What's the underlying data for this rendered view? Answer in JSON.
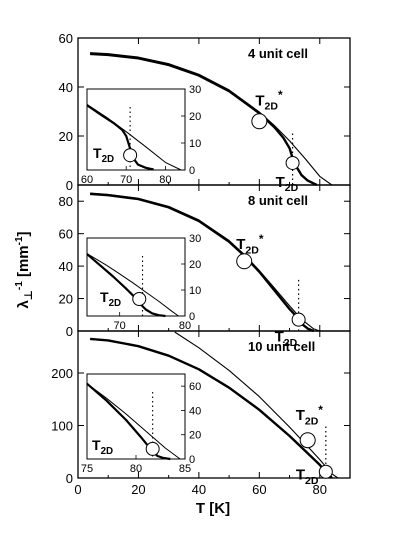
{
  "chart_data": {
    "type": "line",
    "xlabel": "T [K]",
    "ylabel": "λ⊥-1 [mm-1]",
    "panels": [
      {
        "id": "p1",
        "label": "4 unit cell",
        "xlim": [
          0,
          90
        ],
        "ylim": [
          0,
          60
        ],
        "xticks": [],
        "yticks": [
          0,
          20,
          40,
          60
        ],
        "marker_labels": [
          {
            "text": "T2D*",
            "base": "T",
            "sub": "2D",
            "sup": "*",
            "marker": {
              "x": 60,
              "y": 26
            }
          },
          {
            "text": "T2D",
            "base": "T",
            "sub": "2D",
            "sup": "",
            "marker": {
              "x": 71,
              "y": 9
            }
          }
        ],
        "dashed_x": 71,
        "series": [
          {
            "name": "",
            "style": "thin",
            "x": [
              4,
              10,
              20,
              30,
              40,
              50,
              60,
              65,
              70,
              75,
              80,
              84
            ],
            "y": [
              54,
              53.6,
              52.2,
              49.5,
              45.2,
              38.8,
              29.8,
              24.3,
              18.0,
              11.0,
              3.5,
              0
            ]
          },
          {
            "name": "",
            "style": "thick",
            "x": [
              4,
              10,
              20,
              30,
              40,
              50,
              60,
              65,
              68,
              70,
              71,
              72,
              74,
              76,
              79
            ],
            "y": [
              53.5,
              53.1,
              51.7,
              49.0,
              44.7,
              38.3,
              29.3,
              23.6,
              19.2,
              15.0,
              11.0,
              8.0,
              4.0,
              1.8,
              0
            ]
          }
        ],
        "inset": {
          "xlim": [
            60,
            85
          ],
          "ylim": [
            0,
            30
          ],
          "xticks": [
            60,
            70,
            80
          ],
          "yticks": [
            0,
            10,
            20,
            30
          ],
          "marker_label": {
            "text": "T2D",
            "base": "T",
            "sub": "2D",
            "sup": "",
            "marker": {
              "x": 71,
              "y": 4
            }
          },
          "dashed_x": 71,
          "series": [
            {
              "name": "",
              "style": "thin",
              "x": [
                60,
                65,
                70,
                75,
                80,
                84
              ],
              "y": [
                24.3,
                19.5,
                14.2,
                8.6,
                2.8,
                0
              ]
            },
            {
              "name": "",
              "style": "thick",
              "x": [
                60,
                64,
                67,
                69,
                70,
                71,
                72,
                73,
                75,
                77
              ],
              "y": [
                24,
                20,
                17.2,
                14.8,
                12.6,
                8,
                4,
                2,
                0.8,
                0.2
              ]
            }
          ]
        }
      },
      {
        "id": "p2",
        "label": "8 unit cell",
        "xlim": [
          0,
          90
        ],
        "ylim": [
          0,
          90
        ],
        "xticks": [],
        "yticks": [
          0,
          20,
          40,
          60,
          80
        ],
        "marker_labels": [
          {
            "text": "T2D*",
            "base": "T",
            "sub": "2D",
            "sup": "*",
            "marker": {
              "x": 55,
              "y": 43
            }
          },
          {
            "text": "T2D",
            "base": "T",
            "sub": "2D",
            "sup": "",
            "marker": {
              "x": 73,
              "y": 7
            }
          }
        ],
        "dashed_x": 73,
        "series": [
          {
            "name": "",
            "style": "thin",
            "x": [
              4,
              10,
              20,
              30,
              40,
              50,
              55,
              60,
              65,
              70,
              74,
              78,
              80
            ],
            "y": [
              85,
              84.2,
              81.8,
              76.8,
              68.5,
              55.8,
              47.2,
              37.3,
              26.5,
              15.5,
              7.2,
              1.3,
              0
            ]
          },
          {
            "name": "",
            "style": "thick",
            "x": [
              4,
              10,
              20,
              30,
              40,
              50,
              55,
              60,
              65,
              70,
              72,
              73,
              74,
              76,
              78
            ],
            "y": [
              84.5,
              83.7,
              81.3,
              76.2,
              67.8,
              55.0,
              46.5,
              36.5,
              25.0,
              13.5,
              9.5,
              7,
              4.5,
              1.5,
              0
            ]
          }
        ],
        "inset": {
          "xlim": [
            65,
            80
          ],
          "ylim": [
            0,
            30
          ],
          "xticks": [
            70,
            80
          ],
          "yticks": [
            0,
            10,
            20,
            30
          ],
          "marker_label": {
            "text": "T2D",
            "base": "T",
            "sub": "2D",
            "sup": "",
            "marker": {
              "x": 73,
              "y": 5
            }
          },
          "dashed_x": 73.5,
          "series": [
            {
              "name": "",
              "style": "thin",
              "x": [
                65,
                68,
                70,
                72,
                74,
                76,
                78,
                79
              ],
              "y": [
                24,
                19.5,
                16.2,
                12.8,
                9.2,
                5.6,
                1.8,
                0
              ]
            },
            {
              "name": "",
              "style": "thick",
              "x": [
                65,
                67,
                69,
                71,
                72,
                73,
                74,
                75,
                76,
                77
              ],
              "y": [
                23.8,
                19.5,
                15.2,
                10.5,
                8,
                5,
                2.5,
                1,
                0.3,
                0
              ]
            }
          ]
        }
      },
      {
        "id": "p3",
        "label": "10 unit cell",
        "xlim": [
          0,
          90
        ],
        "ylim": [
          0,
          280
        ],
        "xticks": [
          0,
          20,
          40,
          60,
          80
        ],
        "yticks": [
          0,
          100,
          200
        ],
        "marker_labels": [
          {
            "text": "T2D*",
            "base": "T",
            "sub": "2D",
            "sup": "*",
            "marker": {
              "x": 76,
              "y": 72
            }
          },
          {
            "text": "T2D",
            "base": "T",
            "sub": "2D",
            "sup": "",
            "marker": {
              "x": 82,
              "y": 12
            }
          }
        ],
        "dashed_x": 82,
        "series": [
          {
            "name": "",
            "style": "thin",
            "x": [
              32,
              40,
              50,
              60,
              70,
              76,
              80,
              84,
              86
            ],
            "y": [
              278,
              248,
              205,
              155,
              97,
              60,
              35,
              8,
              0
            ]
          },
          {
            "name": "",
            "style": "thick",
            "x": [
              4,
              10,
              20,
              30,
              40,
              50,
              60,
              70,
              76,
              80,
              82,
              84
            ],
            "y": [
              265,
              262,
              251,
              233,
              207,
              172,
              130,
              80,
              47,
              25,
              12,
              0
            ]
          }
        ],
        "inset": {
          "xlim": [
            75,
            85
          ],
          "ylim": [
            0,
            70
          ],
          "xticks": [
            75,
            80,
            85
          ],
          "yticks": [
            0,
            20,
            40,
            60
          ],
          "marker_label": {
            "text": "T2D",
            "base": "T",
            "sub": "2D",
            "sup": "",
            "marker": {
              "x": 81.7,
              "y": 5
            }
          },
          "dashed_x": 81.7,
          "series": [
            {
              "name": "",
              "style": "thin",
              "x": [
                75,
                77,
                79,
                81,
                83,
                84.5
              ],
              "y": [
                62,
                50,
                37,
                23,
                9,
                0
              ]
            },
            {
              "name": "",
              "style": "thick",
              "x": [
                75,
                77,
                79,
                80.5,
                81.2,
                81.7,
                82.2,
                82.8,
                83.5
              ],
              "y": [
                62,
                48,
                32,
                18,
                11,
                6,
                2.5,
                0.8,
                0
              ]
            }
          ]
        }
      }
    ]
  }
}
